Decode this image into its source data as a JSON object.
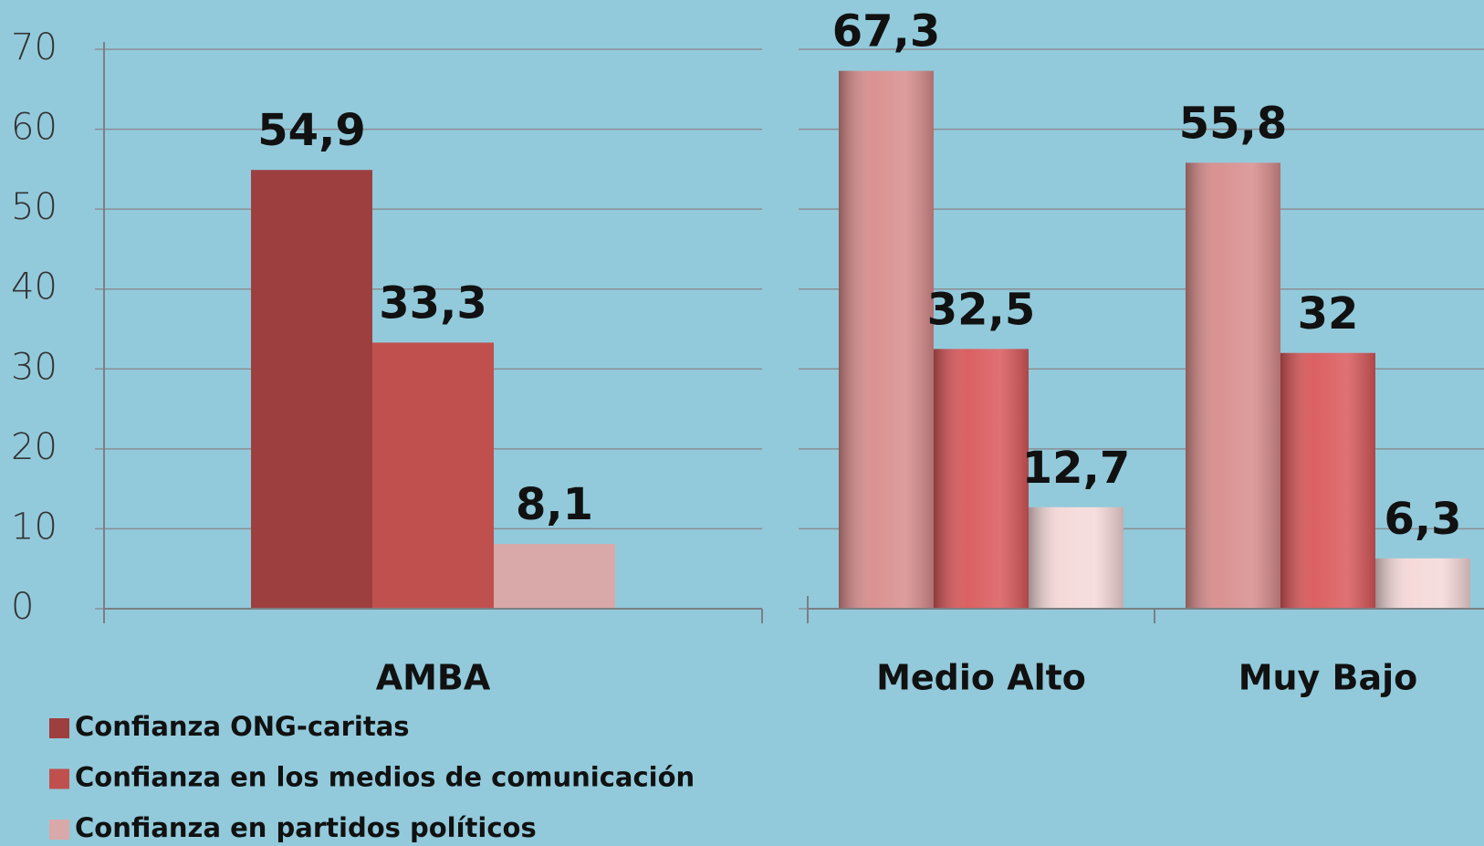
{
  "chart_data": [
    {
      "type": "bar",
      "categories": [
        "AMBA"
      ],
      "series": [
        {
          "name": "Confianza ONG-caritas",
          "color": "#9e3f3f",
          "values": [
            54.9
          ],
          "value_labels": [
            "54,9"
          ]
        },
        {
          "name": "Confianza en los medios de comunicación",
          "color": "#c0504d",
          "values": [
            33.3
          ],
          "value_labels": [
            "33,3"
          ]
        },
        {
          "name": "Confianza en partidos políticos",
          "color": "#d9a8a8",
          "values": [
            8.1
          ],
          "value_labels": [
            "8,1"
          ]
        }
      ],
      "ylim": [
        0,
        70
      ],
      "yticks": [
        0,
        10,
        20,
        30,
        40,
        50,
        60,
        70
      ],
      "grid": true,
      "legend": "bottom-left"
    },
    {
      "type": "bar",
      "categories": [
        "Medio Alto",
        "Muy Bajo"
      ],
      "series": [
        {
          "color": "#d88c8c",
          "values": [
            67.3,
            55.8
          ],
          "value_labels": [
            "67,3",
            "55,8"
          ]
        },
        {
          "color": "#d9585a",
          "values": [
            32.5,
            32
          ],
          "value_labels": [
            "32,5",
            "32"
          ]
        },
        {
          "color": "#f5d8d8",
          "values": [
            12.7,
            6.3
          ],
          "value_labels": [
            "12,7",
            "6,3"
          ]
        }
      ],
      "ylim": [
        0,
        70
      ],
      "yticks": [
        0,
        10,
        20,
        30,
        40,
        50,
        60,
        70
      ],
      "grid": true
    }
  ]
}
